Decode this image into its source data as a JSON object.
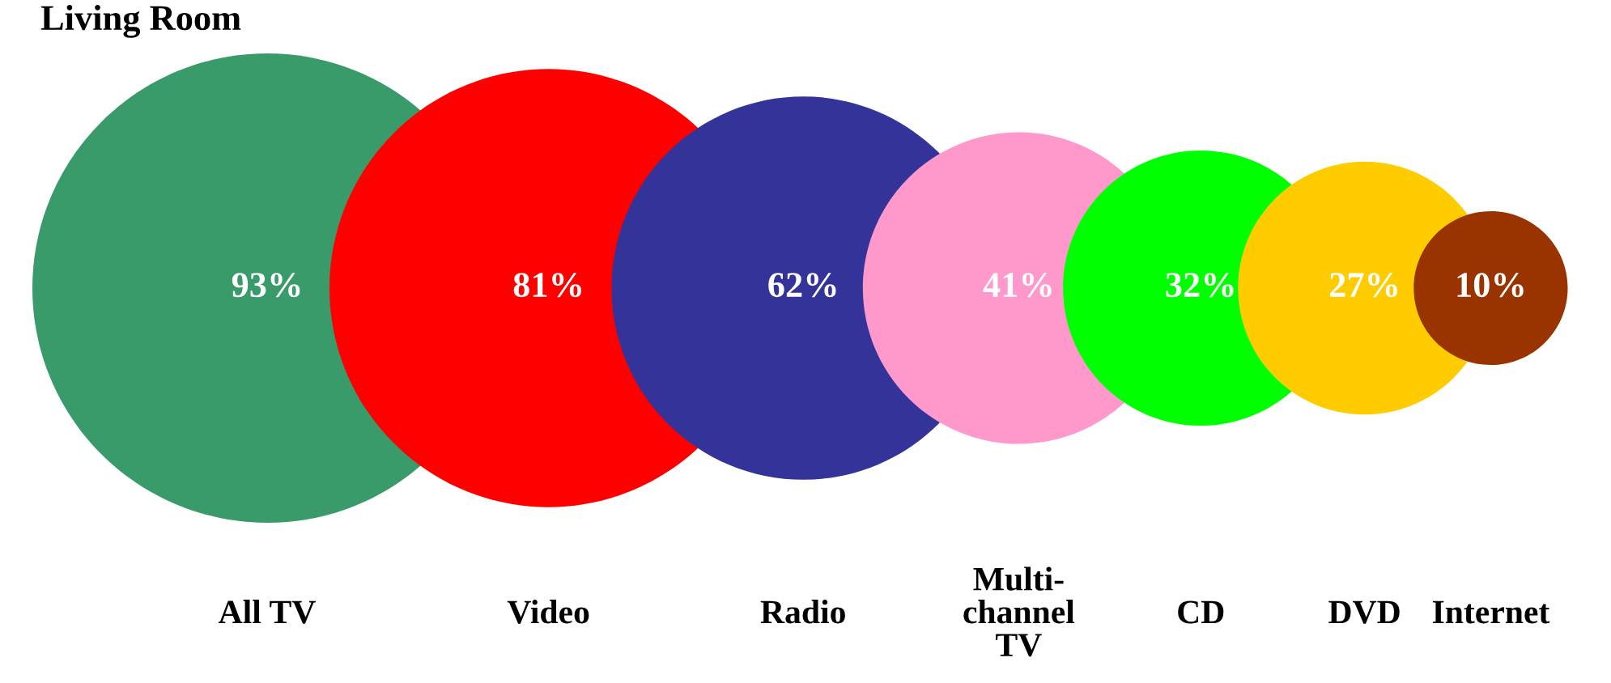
{
  "chart_data": {
    "type": "other",
    "title": "Living Room",
    "categories": [
      "All TV",
      "Video",
      "Radio",
      "Multi-\nchannel\nTV",
      "CD",
      "DVD",
      "Internet"
    ],
    "values": [
      93,
      81,
      62,
      41,
      32,
      27,
      10
    ],
    "value_labels": [
      "93%",
      "81%",
      "62%",
      "41%",
      "32%",
      "27%",
      "10%"
    ],
    "colors": [
      "#3a9b6a",
      "#ff0000",
      "#333399",
      "#ff99cc",
      "#00ff00",
      "#ffcc00",
      "#993300"
    ]
  }
}
